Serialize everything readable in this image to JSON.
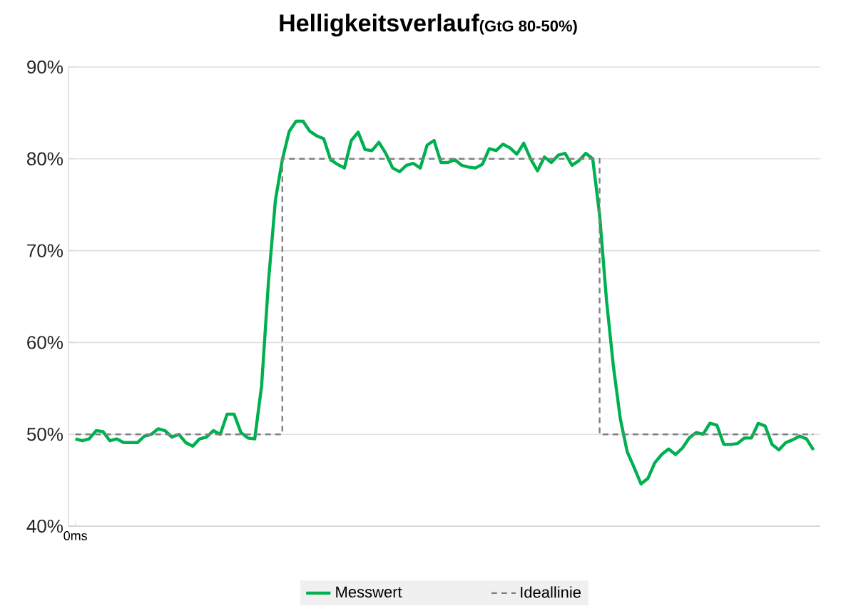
{
  "chart_data": {
    "type": "line",
    "title": "Helligkeitsverlauf",
    "subtitle": "(GtG 80-50%)",
    "categories": [
      "0ms",
      null,
      null,
      null,
      null,
      null,
      null,
      null,
      null,
      null,
      null,
      null,
      null,
      null,
      null,
      null,
      null,
      null,
      null,
      null,
      null,
      null,
      null,
      null,
      null,
      null,
      null,
      null,
      null,
      null,
      null,
      null,
      null,
      null,
      null,
      null,
      null,
      null,
      null,
      null,
      null,
      null,
      null,
      null,
      null,
      null,
      null,
      null,
      null,
      null,
      null,
      null,
      null,
      null,
      null,
      null,
      null,
      null,
      null,
      null,
      null,
      null,
      null,
      null,
      null,
      null,
      null,
      null,
      null,
      null,
      null,
      null,
      null,
      null,
      null,
      null,
      null,
      null,
      null,
      null,
      null,
      null,
      null,
      null,
      null,
      null,
      null,
      null,
      null,
      null,
      null,
      null,
      null,
      null,
      null,
      null,
      null,
      null,
      null,
      null,
      null,
      null,
      null,
      null,
      null,
      null,
      null,
      null
    ],
    "series": [
      {
        "name": "Messwert",
        "color": "#00b050",
        "line_style": "solid",
        "values": [
          49.5,
          49.3,
          49.5,
          50.4,
          50.3,
          49.3,
          49.5,
          49.1,
          49.1,
          49.1,
          49.8,
          50,
          50.6,
          50.4,
          49.7,
          50,
          49.1,
          48.7,
          49.5,
          49.7,
          50.4,
          50,
          52.2,
          52.2,
          50.2,
          49.6,
          49.5,
          55.3,
          66.7,
          75.5,
          79.9,
          83,
          84.1,
          84.1,
          83,
          82.5,
          82.2,
          79.9,
          79.4,
          79,
          82,
          82.9,
          81,
          80.9,
          81.8,
          80.6,
          79,
          78.6,
          79.3,
          79.5,
          79,
          81.5,
          82,
          79.6,
          79.6,
          79.9,
          79.3,
          79.1,
          79,
          79.4,
          81.1,
          80.9,
          81.6,
          81.2,
          80.5,
          81.7,
          80,
          78.7,
          80.2,
          79.6,
          80.4,
          80.6,
          79.3,
          79.8,
          80.6,
          80,
          73.9,
          64.6,
          57.4,
          51.7,
          48.1,
          46.4,
          44.6,
          45.2,
          46.9,
          47.8,
          48.4,
          47.8,
          48.5,
          49.6,
          50.2,
          50,
          51.2,
          51,
          48.9,
          48.9,
          49,
          49.6,
          49.6,
          51.2,
          50.9,
          48.9,
          48.3,
          49.1,
          49.4,
          49.8,
          49.5,
          48.3
        ]
      },
      {
        "name": "Ideallinie",
        "type": "step",
        "color": "#808080",
        "line_style": "dashed",
        "values": [
          50,
          50,
          50,
          50,
          50,
          50,
          50,
          50,
          50,
          50,
          50,
          50,
          50,
          50,
          50,
          50,
          50,
          50,
          50,
          50,
          50,
          50,
          50,
          50,
          50,
          50,
          50,
          50,
          50,
          50,
          80,
          80,
          80,
          80,
          80,
          80,
          80,
          80,
          80,
          80,
          80,
          80,
          80,
          80,
          80,
          80,
          80,
          80,
          80,
          80,
          80,
          80,
          80,
          80,
          80,
          80,
          80,
          80,
          80,
          80,
          80,
          80,
          80,
          80,
          80,
          80,
          80,
          80,
          80,
          80,
          80,
          80,
          80,
          80,
          80,
          80,
          50,
          50,
          50,
          50,
          50,
          50,
          50,
          50,
          50,
          50,
          50,
          50,
          50,
          50,
          50,
          50,
          50,
          50,
          50,
          50,
          50,
          50,
          50,
          50,
          50,
          50,
          50,
          50,
          50,
          50,
          50,
          50
        ]
      }
    ],
    "ylim": [
      40,
      90
    ],
    "yticks": [
      {
        "value": 40,
        "label": "40%"
      },
      {
        "value": 50,
        "label": "50%"
      },
      {
        "value": 60,
        "label": "60%"
      },
      {
        "value": 70,
        "label": "70%"
      },
      {
        "value": 80,
        "label": "80%"
      },
      {
        "value": 90,
        "label": "90%"
      }
    ],
    "grid": "y",
    "legend": "bottom",
    "marker": "none"
  }
}
